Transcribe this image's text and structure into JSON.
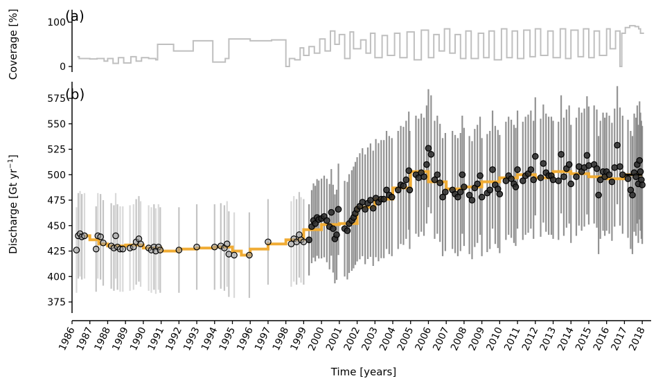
{
  "chart_data": [
    {
      "panel": "(a)",
      "type": "line",
      "ylabel": "Coverage [%]",
      "ylim": [
        0,
        100
      ],
      "yticks": [
        0,
        100
      ],
      "xlim": [
        1986,
        2018.5
      ],
      "colors": {
        "line": "#bfbfbf"
      },
      "series": [
        {
          "step": "post",
          "points": [
            [
              1986.3,
              22
            ],
            [
              1986.4,
              18
            ],
            [
              1987.0,
              17
            ],
            [
              1987.4,
              18
            ],
            [
              1987.8,
              12
            ],
            [
              1988.0,
              18
            ],
            [
              1988.3,
              7
            ],
            [
              1988.6,
              20
            ],
            [
              1988.9,
              8
            ],
            [
              1989.3,
              22
            ],
            [
              1989.6,
              12
            ],
            [
              1989.9,
              20
            ],
            [
              1990.3,
              18
            ],
            [
              1990.7,
              15
            ],
            [
              1990.8,
              50
            ],
            [
              1991.7,
              35
            ],
            [
              1992.8,
              58
            ],
            [
              1993.9,
              10
            ],
            [
              1994.6,
              18
            ],
            [
              1994.8,
              62
            ],
            [
              1996.0,
              58
            ],
            [
              1997.2,
              60
            ],
            [
              1998.0,
              0
            ],
            [
              1998.2,
              18
            ],
            [
              1998.5,
              15
            ],
            [
              1998.8,
              42
            ],
            [
              1999.0,
              25
            ],
            [
              1999.3,
              45
            ],
            [
              1999.6,
              30
            ],
            [
              1999.9,
              62
            ],
            [
              2000.2,
              35
            ],
            [
              2000.5,
              80
            ],
            [
              2000.75,
              50
            ],
            [
              2001.0,
              72
            ],
            [
              2001.3,
              18
            ],
            [
              2001.6,
              78
            ],
            [
              2001.8,
              40
            ],
            [
              2002.2,
              60
            ],
            [
              2002.5,
              30
            ],
            [
              2002.75,
              75
            ],
            [
              2003.0,
              20
            ],
            [
              2003.4,
              70
            ],
            [
              2003.7,
              25
            ],
            [
              2004.1,
              75
            ],
            [
              2004.4,
              20
            ],
            [
              2004.8,
              78
            ],
            [
              2005.2,
              15
            ],
            [
              2005.6,
              82
            ],
            [
              2006.0,
              20
            ],
            [
              2006.3,
              72
            ],
            [
              2006.6,
              35
            ],
            [
              2006.9,
              85
            ],
            [
              2007.2,
              30
            ],
            [
              2007.5,
              72
            ],
            [
              2007.8,
              18
            ],
            [
              2008.1,
              80
            ],
            [
              2008.4,
              18
            ],
            [
              2008.8,
              75
            ],
            [
              2009.1,
              20
            ],
            [
              2009.4,
              80
            ],
            [
              2009.7,
              15
            ],
            [
              2010.1,
              85
            ],
            [
              2010.4,
              20
            ],
            [
              2010.7,
              80
            ],
            [
              2011.0,
              18
            ],
            [
              2011.35,
              82
            ],
            [
              2011.7,
              22
            ],
            [
              2012.0,
              85
            ],
            [
              2012.3,
              25
            ],
            [
              2012.7,
              80
            ],
            [
              2013.0,
              20
            ],
            [
              2013.4,
              85
            ],
            [
              2013.7,
              18
            ],
            [
              2014.0,
              82
            ],
            [
              2014.4,
              22
            ],
            [
              2014.7,
              85
            ],
            [
              2015.0,
              20
            ],
            [
              2015.3,
              80
            ],
            [
              2015.6,
              25
            ],
            [
              2016.0,
              85
            ],
            [
              2016.2,
              40
            ],
            [
              2016.5,
              80
            ],
            [
              2016.75,
              0
            ],
            [
              2016.85,
              75
            ],
            [
              2017.05,
              88
            ],
            [
              2017.3,
              92
            ],
            [
              2017.6,
              90
            ],
            [
              2017.8,
              85
            ],
            [
              2017.9,
              75
            ],
            [
              2018.0,
              75
            ]
          ]
        }
      ]
    },
    {
      "panel": "(b)",
      "type": "line",
      "xlabel": "Time [years]",
      "ylabel": "Discharge [Gt yr",
      "ylabel_sup": "−1",
      "ylabel_tail": "]",
      "ylim": [
        367,
        592
      ],
      "yticks": [
        375,
        400,
        425,
        450,
        475,
        500,
        525,
        550,
        575
      ],
      "xlim": [
        1986,
        2018.5
      ],
      "xticks": [
        1986,
        1987,
        1988,
        1989,
        1990,
        1991,
        1992,
        1993,
        1994,
        1995,
        1996,
        1997,
        1998,
        1999,
        2000,
        2001,
        2002,
        2003,
        2004,
        2005,
        2006,
        2007,
        2008,
        2009,
        2010,
        2011,
        2012,
        2013,
        2014,
        2015,
        2016,
        2017,
        2018
      ],
      "colors": {
        "step": "#f0ac35",
        "step_late": "#000000",
        "point": "#000000",
        "err_light": "#d9d9d9",
        "err_dark": "#7f7f7f"
      },
      "annual_step": [
        [
          1986.0,
          440
        ],
        [
          1987.0,
          436
        ],
        [
          1987.5,
          432
        ],
        [
          1988.0,
          430
        ],
        [
          1989.0,
          431
        ],
        [
          1990.0,
          428
        ],
        [
          1991.0,
          425
        ],
        [
          1992.0,
          427
        ],
        [
          1993.0,
          428
        ],
        [
          1994.0,
          429
        ],
        [
          1995.0,
          425
        ],
        [
          1995.5,
          421
        ],
        [
          1996.0,
          427
        ],
        [
          1997.0,
          432
        ],
        [
          1998.0,
          436
        ],
        [
          1999.0,
          446
        ],
        [
          2000.0,
          451
        ],
        [
          2001.0,
          452
        ],
        [
          2002.0,
          468
        ],
        [
          2003.0,
          476
        ],
        [
          2004.0,
          487
        ],
        [
          2005.0,
          503
        ],
        [
          2006.0,
          493
        ],
        [
          2007.0,
          486
        ],
        [
          2008.0,
          488
        ],
        [
          2009.0,
          493
        ],
        [
          2010.0,
          497
        ],
        [
          2011.0,
          500
        ],
        [
          2012.0,
          497
        ],
        [
          2013.0,
          503
        ],
        [
          2014.0,
          501
        ],
        [
          2015.0,
          498
        ],
        [
          2016.0,
          496
        ],
        [
          2017.0,
          500
        ],
        [
          2018.0,
          500
        ]
      ],
      "points": [
        [
          1986.25,
          426
        ],
        [
          1986.35,
          440
        ],
        [
          1986.45,
          442
        ],
        [
          1986.55,
          439
        ],
        [
          1986.7,
          440
        ],
        [
          1987.35,
          427
        ],
        [
          1987.45,
          440
        ],
        [
          1987.6,
          439
        ],
        [
          1987.75,
          433
        ],
        [
          1988.2,
          430
        ],
        [
          1988.35,
          428
        ],
        [
          1988.45,
          440
        ],
        [
          1988.55,
          429
        ],
        [
          1988.7,
          427
        ],
        [
          1988.85,
          427
        ],
        [
          1989.25,
          428
        ],
        [
          1989.45,
          429
        ],
        [
          1989.6,
          434
        ],
        [
          1989.75,
          437
        ],
        [
          1989.85,
          432
        ],
        [
          1990.3,
          428
        ],
        [
          1990.45,
          426
        ],
        [
          1990.6,
          429
        ],
        [
          1990.7,
          425
        ],
        [
          1990.85,
          429
        ],
        [
          1990.95,
          426
        ],
        [
          1992.0,
          426
        ],
        [
          1993.0,
          429
        ],
        [
          1994.0,
          429
        ],
        [
          1994.35,
          430
        ],
        [
          1994.55,
          428
        ],
        [
          1994.7,
          432
        ],
        [
          1994.8,
          422
        ],
        [
          1995.1,
          421
        ],
        [
          1995.95,
          421
        ],
        [
          1997.0,
          434
        ],
        [
          1998.3,
          432
        ],
        [
          1998.45,
          437
        ],
        [
          1998.6,
          434
        ],
        [
          1998.75,
          441
        ],
        [
          1998.85,
          436
        ],
        [
          1999.0,
          434
        ],
        [
          1999.3,
          436
        ],
        [
          1999.45,
          449
        ],
        [
          1999.55,
          455
        ],
        [
          1999.65,
          452
        ],
        [
          1999.75,
          458
        ],
        [
          1999.85,
          456
        ],
        [
          2000.0,
          457
        ],
        [
          2000.15,
          459
        ],
        [
          2000.3,
          455
        ],
        [
          2000.45,
          449
        ],
        [
          2000.55,
          463
        ],
        [
          2000.65,
          447
        ],
        [
          2000.75,
          437
        ],
        [
          2000.85,
          441
        ],
        [
          2000.95,
          466
        ],
        [
          2001.3,
          447
        ],
        [
          2001.45,
          445
        ],
        [
          2001.55,
          452
        ],
        [
          2001.7,
          455
        ],
        [
          2001.8,
          458
        ],
        [
          2001.9,
          462
        ],
        [
          2002.0,
          466
        ],
        [
          2002.15,
          469
        ],
        [
          2002.3,
          473
        ],
        [
          2002.45,
          466
        ],
        [
          2002.6,
          472
        ],
        [
          2002.75,
          475
        ],
        [
          2002.9,
          467
        ],
        [
          2003.05,
          477
        ],
        [
          2003.2,
          473
        ],
        [
          2003.35,
          476
        ],
        [
          2003.5,
          476
        ],
        [
          2003.65,
          485
        ],
        [
          2003.8,
          480
        ],
        [
          2003.95,
          478
        ],
        [
          2004.3,
          485
        ],
        [
          2004.45,
          490
        ],
        [
          2004.6,
          489
        ],
        [
          2004.75,
          495
        ],
        [
          2004.9,
          504
        ],
        [
          2004.95,
          485
        ],
        [
          2005.3,
          500
        ],
        [
          2005.45,
          497
        ],
        [
          2005.6,
          502
        ],
        [
          2005.75,
          498
        ],
        [
          2005.9,
          510
        ],
        [
          2006.0,
          526
        ],
        [
          2006.15,
          520
        ],
        [
          2006.35,
          495
        ],
        [
          2006.5,
          500
        ],
        [
          2006.65,
          492
        ],
        [
          2006.8,
          478
        ],
        [
          2006.95,
          483
        ],
        [
          2007.35,
          485
        ],
        [
          2007.5,
          481
        ],
        [
          2007.65,
          478
        ],
        [
          2007.8,
          483
        ],
        [
          2007.9,
          500
        ],
        [
          2008.0,
          488
        ],
        [
          2008.3,
          480
        ],
        [
          2008.45,
          475
        ],
        [
          2008.6,
          487
        ],
        [
          2008.75,
          491
        ],
        [
          2008.9,
          499
        ],
        [
          2009.0,
          478
        ],
        [
          2009.3,
          482
        ],
        [
          2009.45,
          485
        ],
        [
          2009.6,
          505
        ],
        [
          2009.75,
          490
        ],
        [
          2009.9,
          486
        ],
        [
          2010.0,
          481
        ],
        [
          2010.35,
          494
        ],
        [
          2010.5,
          499
        ],
        [
          2010.65,
          496
        ],
        [
          2010.8,
          491
        ],
        [
          2010.9,
          488
        ],
        [
          2011.0,
          505
        ],
        [
          2011.3,
          494
        ],
        [
          2011.45,
          499
        ],
        [
          2011.6,
          501
        ],
        [
          2011.75,
          505
        ],
        [
          2011.9,
          495
        ],
        [
          2012.0,
          518
        ],
        [
          2012.3,
          497
        ],
        [
          2012.45,
          511
        ],
        [
          2012.6,
          502
        ],
        [
          2012.75,
          499
        ],
        [
          2012.9,
          499
        ],
        [
          2013.0,
          495
        ],
        [
          2013.3,
          494
        ],
        [
          2013.45,
          520
        ],
        [
          2013.6,
          498
        ],
        [
          2013.75,
          506
        ],
        [
          2013.9,
          510
        ],
        [
          2014.0,
          491
        ],
        [
          2014.3,
          498
        ],
        [
          2014.45,
          508
        ],
        [
          2014.6,
          503
        ],
        [
          2014.75,
          507
        ],
        [
          2014.9,
          519
        ],
        [
          2015.0,
          509
        ],
        [
          2015.3,
          510
        ],
        [
          2015.45,
          506
        ],
        [
          2015.55,
          480
        ],
        [
          2015.65,
          495
        ],
        [
          2015.8,
          503
        ],
        [
          2015.9,
          498
        ],
        [
          2016.0,
          503
        ],
        [
          2016.15,
          500
        ],
        [
          2016.3,
          493
        ],
        [
          2016.45,
          507
        ],
        [
          2016.6,
          529
        ],
        [
          2016.75,
          508
        ],
        [
          2016.9,
          500
        ],
        [
          2017.2,
          496
        ],
        [
          2017.35,
          485
        ],
        [
          2017.45,
          480
        ],
        [
          2017.55,
          502
        ],
        [
          2017.65,
          498
        ],
        [
          2017.72,
          510
        ],
        [
          2017.78,
          491
        ],
        [
          2017.85,
          514
        ],
        [
          2017.9,
          503
        ],
        [
          2017.95,
          495
        ],
        [
          2018.0,
          490
        ]
      ]
    }
  ]
}
